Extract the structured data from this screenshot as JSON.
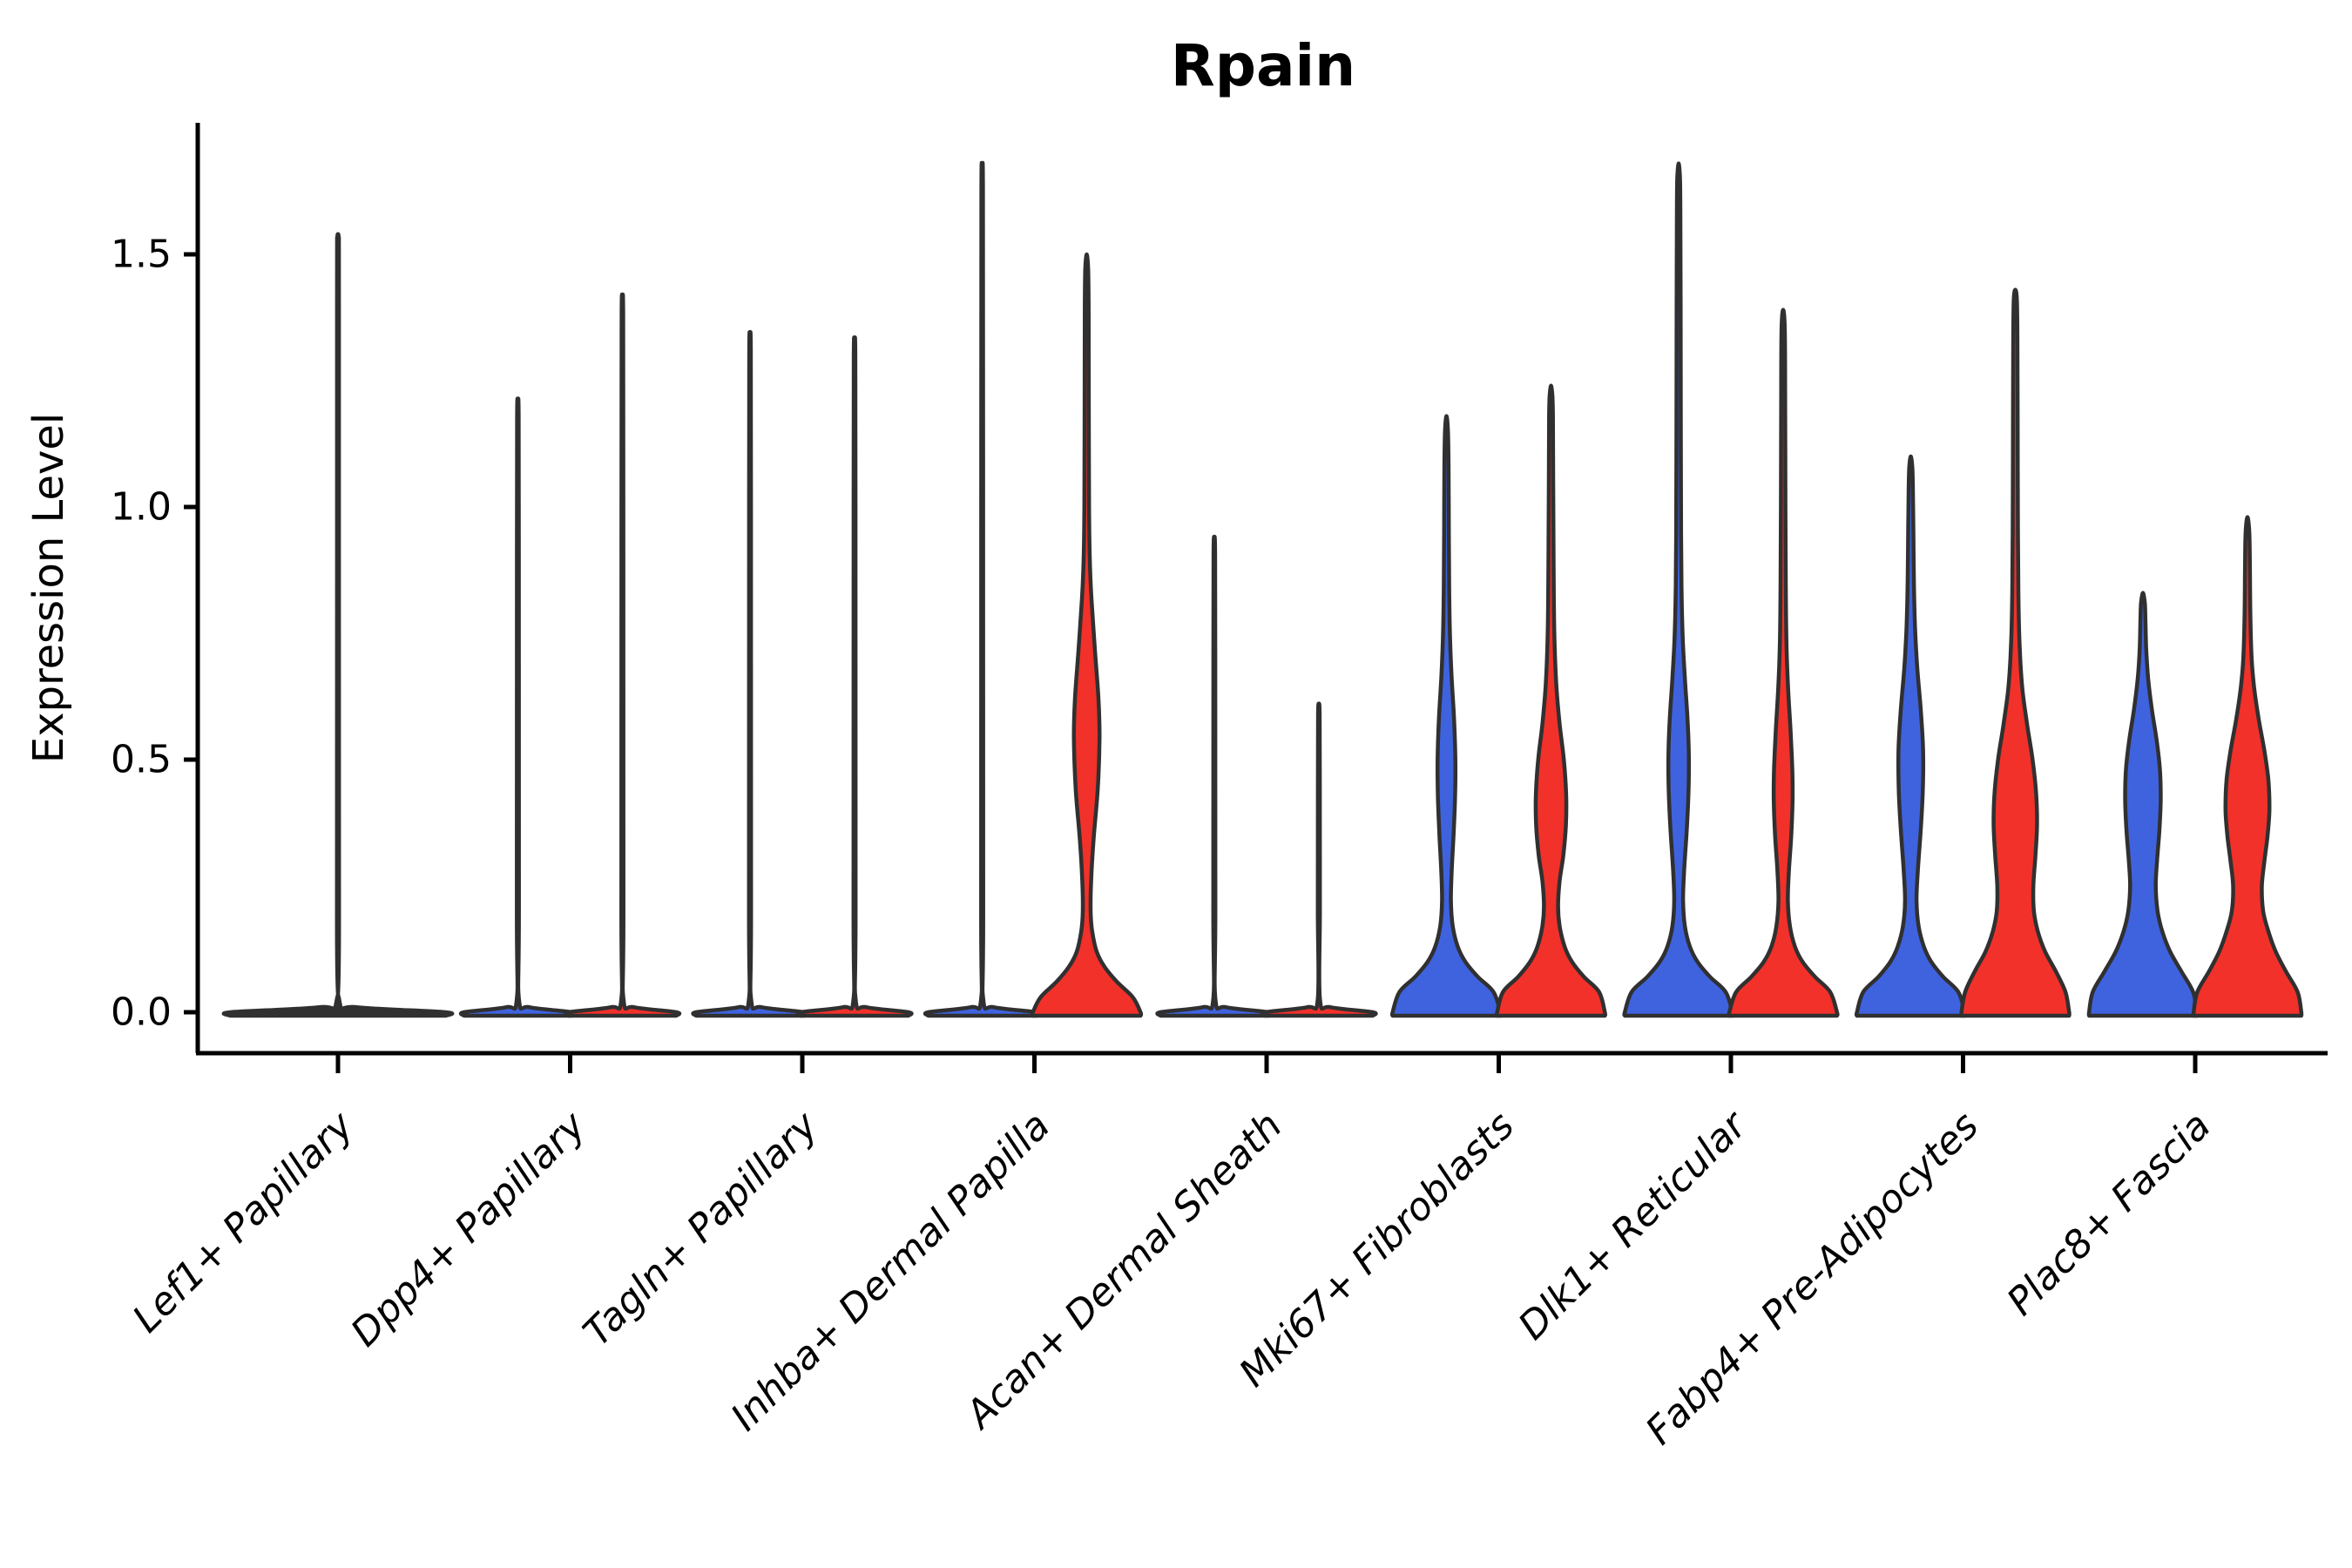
{
  "title": "Rpain",
  "y_axis": {
    "label": "Expression Level",
    "ticks": [
      0.0,
      0.5,
      1.0,
      1.5
    ],
    "tick_labels": [
      "0.0",
      "0.5",
      "1.0",
      "1.5"
    ]
  },
  "colors": {
    "blue": "#3F63DF",
    "red": "#F2312A",
    "dark": "#303030",
    "outline": "#303030",
    "axis": "#000000",
    "background": "#FFFFFF"
  },
  "chart_data": {
    "type": "violin",
    "title": "Rpain",
    "xlabel": "",
    "ylabel": "Expression Level",
    "ylim": [
      -0.05,
      1.77
    ],
    "yticks": [
      0.0,
      0.5,
      1.0,
      1.5
    ],
    "ytick_labels": [
      "0.0",
      "0.5",
      "1.0",
      "1.5"
    ],
    "grid": false,
    "legend": "none",
    "split": true,
    "groups": [
      "blue",
      "red"
    ],
    "categories": [
      "Lef1+ Papillary",
      "Dpp4+ Papillary",
      "Tagln+ Papillary",
      "Inhba+ Dermal Papilla",
      "Acan+ Dermal Sheath",
      "Mki67+ Fibroblasts",
      "Dlk1+ Reticular",
      "Fabp4+ Pre-Adipocytes",
      "Plac8+ Fascia"
    ],
    "violins": [
      {
        "cat": 0,
        "group": "single",
        "fill": "dark",
        "max_expression": 1.54,
        "profile": [
          [
            0,
            1.03
          ],
          [
            0.01,
            0.18
          ],
          [
            0.025,
            0.012
          ],
          [
            0.2,
            0.01
          ],
          [
            1.4,
            0.009
          ],
          [
            1.52,
            0.008
          ],
          [
            1.54,
            0
          ]
        ]
      },
      {
        "cat": 1,
        "group": "blue",
        "fill": "blue",
        "max_expression": 1.21,
        "profile": [
          [
            0,
            1.03
          ],
          [
            0.01,
            0.22
          ],
          [
            0.025,
            0.022
          ],
          [
            0.2,
            0.02
          ],
          [
            0.9,
            0.018
          ],
          [
            1.18,
            0.015
          ],
          [
            1.21,
            0
          ]
        ]
      },
      {
        "cat": 1,
        "group": "red",
        "fill": "red",
        "max_expression": 1.41,
        "profile": [
          [
            0,
            1.03
          ],
          [
            0.01,
            0.22
          ],
          [
            0.025,
            0.022
          ],
          [
            0.2,
            0.02
          ],
          [
            1.0,
            0.018
          ],
          [
            1.38,
            0.015
          ],
          [
            1.41,
            0
          ]
        ]
      },
      {
        "cat": 2,
        "group": "blue",
        "fill": "blue",
        "max_expression": 1.34,
        "profile": [
          [
            0,
            1.03
          ],
          [
            0.01,
            0.22
          ],
          [
            0.025,
            0.022
          ],
          [
            0.2,
            0.02
          ],
          [
            1.0,
            0.018
          ],
          [
            1.31,
            0.015
          ],
          [
            1.34,
            0
          ]
        ]
      },
      {
        "cat": 2,
        "group": "red",
        "fill": "red",
        "max_expression": 1.33,
        "profile": [
          [
            0,
            1.03
          ],
          [
            0.01,
            0.22
          ],
          [
            0.025,
            0.022
          ],
          [
            0.2,
            0.02
          ],
          [
            1.0,
            0.018
          ],
          [
            1.3,
            0.015
          ],
          [
            1.33,
            0
          ]
        ]
      },
      {
        "cat": 3,
        "group": "blue",
        "fill": "blue",
        "max_expression": 1.66,
        "profile": [
          [
            0,
            1.03
          ],
          [
            0.01,
            0.22
          ],
          [
            0.025,
            0.022
          ],
          [
            0.2,
            0.02
          ],
          [
            1.1,
            0.018
          ],
          [
            1.63,
            0.015
          ],
          [
            1.66,
            0
          ]
        ]
      },
      {
        "cat": 3,
        "group": "red",
        "fill": "red",
        "max_expression": 1.5,
        "profile": [
          [
            0,
            1.03
          ],
          [
            0.03,
            0.88
          ],
          [
            0.06,
            0.58
          ],
          [
            0.09,
            0.34
          ],
          [
            0.12,
            0.19
          ],
          [
            0.16,
            0.105
          ],
          [
            0.2,
            0.075
          ],
          [
            0.26,
            0.085
          ],
          [
            0.34,
            0.13
          ],
          [
            0.44,
            0.21
          ],
          [
            0.54,
            0.245
          ],
          [
            0.62,
            0.225
          ],
          [
            0.72,
            0.155
          ],
          [
            0.82,
            0.09
          ],
          [
            0.9,
            0.058
          ],
          [
            1.0,
            0.045
          ],
          [
            1.2,
            0.04
          ],
          [
            1.4,
            0.036
          ],
          [
            1.47,
            0.028
          ],
          [
            1.5,
            0
          ]
        ]
      },
      {
        "cat": 4,
        "group": "blue",
        "fill": "blue",
        "max_expression": 0.94,
        "profile": [
          [
            0,
            1.03
          ],
          [
            0.01,
            0.22
          ],
          [
            0.025,
            0.022
          ],
          [
            0.2,
            0.02
          ],
          [
            0.7,
            0.018
          ],
          [
            0.91,
            0.015
          ],
          [
            0.94,
            0
          ]
        ]
      },
      {
        "cat": 4,
        "group": "red",
        "fill": "red",
        "max_expression": 0.61,
        "profile": [
          [
            0,
            1.03
          ],
          [
            0.01,
            0.22
          ],
          [
            0.025,
            0.022
          ],
          [
            0.2,
            0.02
          ],
          [
            0.45,
            0.018
          ],
          [
            0.59,
            0.015
          ],
          [
            0.61,
            0
          ]
        ]
      },
      {
        "cat": 5,
        "group": "blue",
        "fill": "blue",
        "max_expression": 1.18,
        "profile": [
          [
            0,
            1.03
          ],
          [
            0.04,
            0.9
          ],
          [
            0.07,
            0.6
          ],
          [
            0.1,
            0.36
          ],
          [
            0.13,
            0.215
          ],
          [
            0.17,
            0.12
          ],
          [
            0.22,
            0.085
          ],
          [
            0.28,
            0.1
          ],
          [
            0.35,
            0.135
          ],
          [
            0.43,
            0.165
          ],
          [
            0.5,
            0.17
          ],
          [
            0.58,
            0.145
          ],
          [
            0.66,
            0.1
          ],
          [
            0.74,
            0.068
          ],
          [
            0.84,
            0.052
          ],
          [
            0.95,
            0.045
          ],
          [
            1.08,
            0.04
          ],
          [
            1.15,
            0.028
          ],
          [
            1.18,
            0
          ]
        ]
      },
      {
        "cat": 5,
        "group": "red",
        "fill": "red",
        "max_expression": 1.24,
        "profile": [
          [
            0,
            1.03
          ],
          [
            0.04,
            0.92
          ],
          [
            0.07,
            0.63
          ],
          [
            0.1,
            0.4
          ],
          [
            0.13,
            0.26
          ],
          [
            0.17,
            0.165
          ],
          [
            0.21,
            0.135
          ],
          [
            0.26,
            0.165
          ],
          [
            0.31,
            0.235
          ],
          [
            0.37,
            0.285
          ],
          [
            0.43,
            0.29
          ],
          [
            0.5,
            0.245
          ],
          [
            0.57,
            0.165
          ],
          [
            0.65,
            0.1
          ],
          [
            0.75,
            0.063
          ],
          [
            0.88,
            0.05
          ],
          [
            1.05,
            0.042
          ],
          [
            1.18,
            0.036
          ],
          [
            1.22,
            0.026
          ],
          [
            1.24,
            0
          ]
        ]
      },
      {
        "cat": 6,
        "group": "blue",
        "fill": "blue",
        "max_expression": 1.68,
        "profile": [
          [
            0,
            1.03
          ],
          [
            0.04,
            0.9
          ],
          [
            0.07,
            0.6
          ],
          [
            0.1,
            0.36
          ],
          [
            0.13,
            0.215
          ],
          [
            0.17,
            0.12
          ],
          [
            0.22,
            0.085
          ],
          [
            0.28,
            0.105
          ],
          [
            0.36,
            0.155
          ],
          [
            0.44,
            0.19
          ],
          [
            0.51,
            0.195
          ],
          [
            0.58,
            0.17
          ],
          [
            0.66,
            0.12
          ],
          [
            0.74,
            0.078
          ],
          [
            0.83,
            0.057
          ],
          [
            0.95,
            0.047
          ],
          [
            1.15,
            0.042
          ],
          [
            1.4,
            0.038
          ],
          [
            1.58,
            0.034
          ],
          [
            1.65,
            0.026
          ],
          [
            1.68,
            0
          ]
        ]
      },
      {
        "cat": 6,
        "group": "red",
        "fill": "red",
        "max_expression": 1.39,
        "profile": [
          [
            0,
            1.03
          ],
          [
            0.04,
            0.9
          ],
          [
            0.07,
            0.61
          ],
          [
            0.1,
            0.37
          ],
          [
            0.13,
            0.225
          ],
          [
            0.17,
            0.13
          ],
          [
            0.22,
            0.09
          ],
          [
            0.28,
            0.11
          ],
          [
            0.35,
            0.155
          ],
          [
            0.42,
            0.18
          ],
          [
            0.48,
            0.175
          ],
          [
            0.56,
            0.14
          ],
          [
            0.64,
            0.095
          ],
          [
            0.73,
            0.063
          ],
          [
            0.85,
            0.05
          ],
          [
            1.0,
            0.043
          ],
          [
            1.2,
            0.039
          ],
          [
            1.35,
            0.032
          ],
          [
            1.39,
            0
          ]
        ]
      },
      {
        "cat": 7,
        "group": "blue",
        "fill": "blue",
        "max_expression": 1.1,
        "profile": [
          [
            0,
            1.03
          ],
          [
            0.04,
            0.91
          ],
          [
            0.07,
            0.62
          ],
          [
            0.1,
            0.39
          ],
          [
            0.13,
            0.25
          ],
          [
            0.17,
            0.15
          ],
          [
            0.22,
            0.11
          ],
          [
            0.28,
            0.135
          ],
          [
            0.36,
            0.19
          ],
          [
            0.44,
            0.23
          ],
          [
            0.52,
            0.235
          ],
          [
            0.6,
            0.19
          ],
          [
            0.68,
            0.125
          ],
          [
            0.76,
            0.082
          ],
          [
            0.85,
            0.06
          ],
          [
            0.95,
            0.05
          ],
          [
            1.04,
            0.04
          ],
          [
            1.08,
            0.028
          ],
          [
            1.1,
            0
          ]
        ]
      },
      {
        "cat": 7,
        "group": "red",
        "fill": "red",
        "max_expression": 1.43,
        "profile": [
          [
            0,
            1.03
          ],
          [
            0.04,
            0.96
          ],
          [
            0.08,
            0.78
          ],
          [
            0.12,
            0.57
          ],
          [
            0.16,
            0.43
          ],
          [
            0.2,
            0.355
          ],
          [
            0.25,
            0.345
          ],
          [
            0.31,
            0.385
          ],
          [
            0.37,
            0.415
          ],
          [
            0.43,
            0.4
          ],
          [
            0.5,
            0.33
          ],
          [
            0.57,
            0.225
          ],
          [
            0.64,
            0.135
          ],
          [
            0.72,
            0.085
          ],
          [
            0.82,
            0.06
          ],
          [
            0.95,
            0.05
          ],
          [
            1.15,
            0.045
          ],
          [
            1.33,
            0.04
          ],
          [
            1.41,
            0.03
          ],
          [
            1.43,
            0
          ]
        ]
      },
      {
        "cat": 8,
        "group": "blue",
        "fill": "blue",
        "max_expression": 0.83,
        "profile": [
          [
            0,
            1.03
          ],
          [
            0.04,
            0.96
          ],
          [
            0.08,
            0.74
          ],
          [
            0.12,
            0.52
          ],
          [
            0.16,
            0.37
          ],
          [
            0.2,
            0.28
          ],
          [
            0.25,
            0.245
          ],
          [
            0.3,
            0.27
          ],
          [
            0.36,
            0.315
          ],
          [
            0.42,
            0.34
          ],
          [
            0.48,
            0.325
          ],
          [
            0.54,
            0.26
          ],
          [
            0.6,
            0.17
          ],
          [
            0.66,
            0.1
          ],
          [
            0.72,
            0.062
          ],
          [
            0.78,
            0.047
          ],
          [
            0.81,
            0.036
          ],
          [
            0.83,
            0
          ]
        ]
      },
      {
        "cat": 8,
        "group": "red",
        "fill": "red",
        "max_expression": 0.98,
        "profile": [
          [
            0,
            1.03
          ],
          [
            0.04,
            0.96
          ],
          [
            0.08,
            0.74
          ],
          [
            0.12,
            0.54
          ],
          [
            0.16,
            0.4
          ],
          [
            0.2,
            0.3
          ],
          [
            0.25,
            0.275
          ],
          [
            0.3,
            0.325
          ],
          [
            0.35,
            0.385
          ],
          [
            0.4,
            0.42
          ],
          [
            0.46,
            0.4
          ],
          [
            0.52,
            0.32
          ],
          [
            0.58,
            0.215
          ],
          [
            0.64,
            0.13
          ],
          [
            0.7,
            0.08
          ],
          [
            0.78,
            0.056
          ],
          [
            0.88,
            0.046
          ],
          [
            0.95,
            0.035
          ],
          [
            0.98,
            0
          ]
        ]
      }
    ]
  }
}
